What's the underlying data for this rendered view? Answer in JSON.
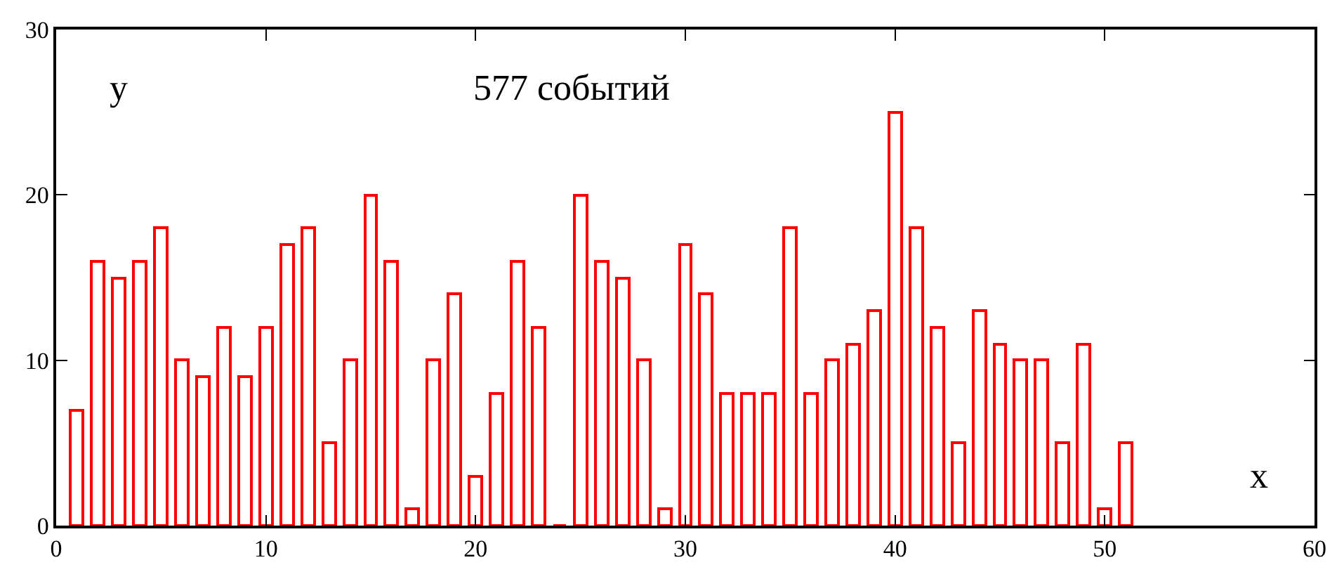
{
  "chart_data": {
    "type": "bar",
    "title": "577 событий",
    "xlabel": "x",
    "ylabel": "y",
    "x": [
      1,
      2,
      3,
      4,
      5,
      6,
      7,
      8,
      9,
      10,
      11,
      12,
      13,
      14,
      15,
      16,
      17,
      18,
      19,
      20,
      21,
      22,
      23,
      24,
      25,
      26,
      27,
      28,
      29,
      30,
      31,
      32,
      33,
      34,
      35,
      36,
      37,
      38,
      39,
      40,
      41,
      42,
      43,
      44,
      45,
      46,
      47,
      48,
      49,
      50,
      51
    ],
    "values": [
      7,
      16,
      15,
      16,
      18,
      10,
      9,
      12,
      9,
      12,
      17,
      18,
      5,
      10,
      20,
      16,
      1,
      10,
      14,
      3,
      8,
      16,
      12,
      0,
      20,
      16,
      15,
      10,
      1,
      17,
      14,
      8,
      8,
      8,
      18,
      8,
      10,
      11,
      13,
      25,
      18,
      12,
      5,
      13,
      11,
      10,
      10,
      5,
      11,
      1,
      5
    ],
    "color": "#ff0000",
    "xlim": [
      0,
      60
    ],
    "xticks": [
      0,
      10,
      20,
      30,
      40,
      50,
      60
    ],
    "ylim": [
      0,
      30
    ],
    "yticks": [
      0,
      10,
      20,
      30
    ]
  }
}
